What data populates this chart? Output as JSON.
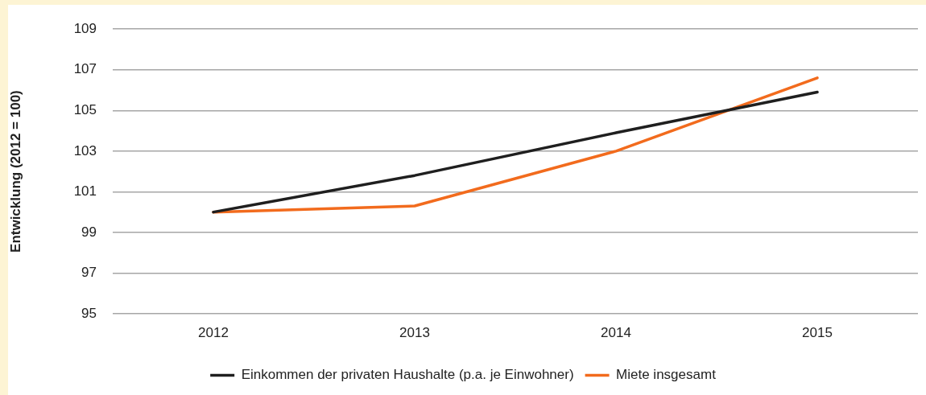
{
  "chart_data": {
    "type": "line",
    "ylabel": "Entwicklung (2012 = 100)",
    "categories": [
      "2012",
      "2013",
      "2014",
      "2015"
    ],
    "series": [
      {
        "name": "Einkommen der privaten Haushalte (p.a. je Einwohner)",
        "color": "#1f1f1f",
        "values": [
          100,
          101.8,
          103.9,
          105.9
        ]
      },
      {
        "name": "Miete insgesamt",
        "color": "#f26b1d",
        "values": [
          100,
          100.3,
          103,
          106.6
        ]
      }
    ],
    "ylim": [
      95,
      109
    ],
    "yticks": [
      95,
      97,
      99,
      101,
      103,
      105,
      107,
      109
    ],
    "grid": "y",
    "legend": "bottom",
    "marker": "none",
    "line_style": "solid"
  }
}
